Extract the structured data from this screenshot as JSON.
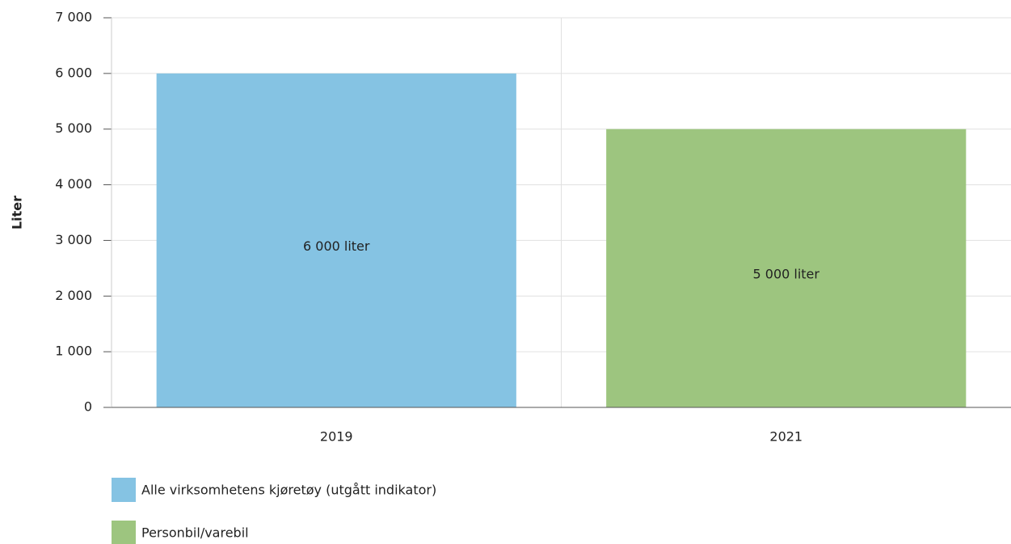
{
  "chart_data": {
    "type": "bar",
    "y_label": "Liter",
    "categories": [
      "2019",
      "2021"
    ],
    "series": [
      {
        "name": "Alle virksomhetens kjøretøy (utgått indikator)",
        "color": "#85c3e3",
        "values": [
          6000,
          null
        ],
        "value_labels": [
          "6 000 liter",
          null
        ]
      },
      {
        "name": "Personbil/varebil",
        "color": "#9dc57f",
        "values": [
          null,
          5000
        ],
        "value_labels": [
          null,
          "5 000 liter"
        ]
      }
    ],
    "ylim": [
      0,
      7000
    ],
    "yticks": [
      0,
      {
        "value": 1000,
        "label": "1 000"
      },
      {
        "value": 2000,
        "label": "2 000"
      },
      {
        "value": 3000,
        "label": "3 000"
      },
      {
        "value": 4000,
        "label": "4 000"
      },
      {
        "value": 5000,
        "label": "5 000"
      },
      {
        "value": 6000,
        "label": "6 000"
      },
      {
        "value": 7000,
        "label": "7 000"
      }
    ],
    "grid": true
  }
}
